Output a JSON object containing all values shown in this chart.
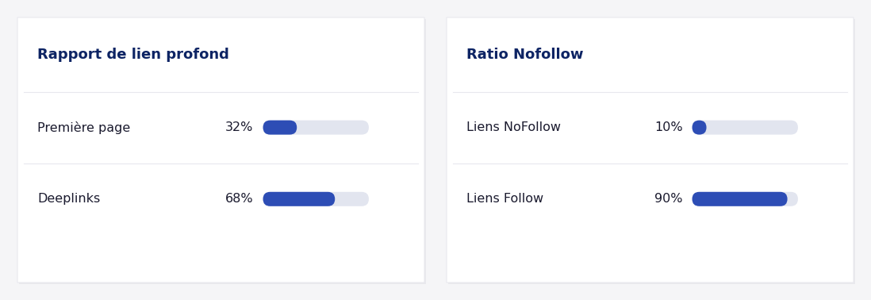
{
  "background_color": "#f5f5f7",
  "card_color": "#ffffff",
  "card_edge_color": "#e8e8ee",
  "title_color": "#0d2464",
  "label_color": "#1a1a2e",
  "pct_color": "#1a1a2e",
  "bar_fill_color_left": "#2d4db5",
  "bar_fill_color_right": "#8fa0d8",
  "bar_track_color": "#e2e5ef",
  "fig_width": 10.98,
  "fig_height": 3.78,
  "left_card": {
    "title": "Rapport de lien profond",
    "rows": [
      {
        "label": "Première page",
        "pct": 32,
        "pct_str": "32%"
      },
      {
        "label": "Deeplinks",
        "pct": 68,
        "pct_str": "68%"
      }
    ]
  },
  "right_card": {
    "title": "Ratio Nofollow",
    "rows": [
      {
        "label": "Liens NoFollow",
        "pct": 10,
        "pct_str": "10%"
      },
      {
        "label": "Liens Follow",
        "pct": 90,
        "pct_str": "90%"
      }
    ]
  }
}
